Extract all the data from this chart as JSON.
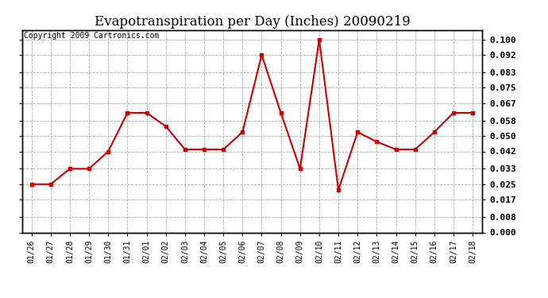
{
  "title": "Evapotranspiration per Day (Inches) 20090219",
  "copyright_text": "Copyright 2009 Cartronics.com",
  "dates": [
    "01/26",
    "01/27",
    "01/28",
    "01/29",
    "01/30",
    "01/31",
    "02/01",
    "02/02",
    "02/03",
    "02/04",
    "02/05",
    "02/06",
    "02/07",
    "02/08",
    "02/09",
    "02/10",
    "02/11",
    "02/12",
    "02/13",
    "02/14",
    "02/15",
    "02/16",
    "02/17",
    "02/18"
  ],
  "values": [
    0.025,
    0.025,
    0.033,
    0.033,
    0.042,
    0.062,
    0.062,
    0.055,
    0.043,
    0.043,
    0.043,
    0.052,
    0.092,
    0.062,
    0.033,
    0.1,
    0.022,
    0.052,
    0.047,
    0.043,
    0.043,
    0.052,
    0.062,
    0.062
  ],
  "line_color": "#cc0000",
  "marker": "s",
  "marker_size": 3,
  "background_color": "#ffffff",
  "grid_color": "#aaaaaa",
  "yticks": [
    0.0,
    0.008,
    0.017,
    0.025,
    0.033,
    0.042,
    0.05,
    0.058,
    0.067,
    0.075,
    0.083,
    0.092,
    0.1
  ],
  "ylim": [
    0.0,
    0.105
  ],
  "title_fontsize": 12,
  "copyright_fontsize": 7
}
